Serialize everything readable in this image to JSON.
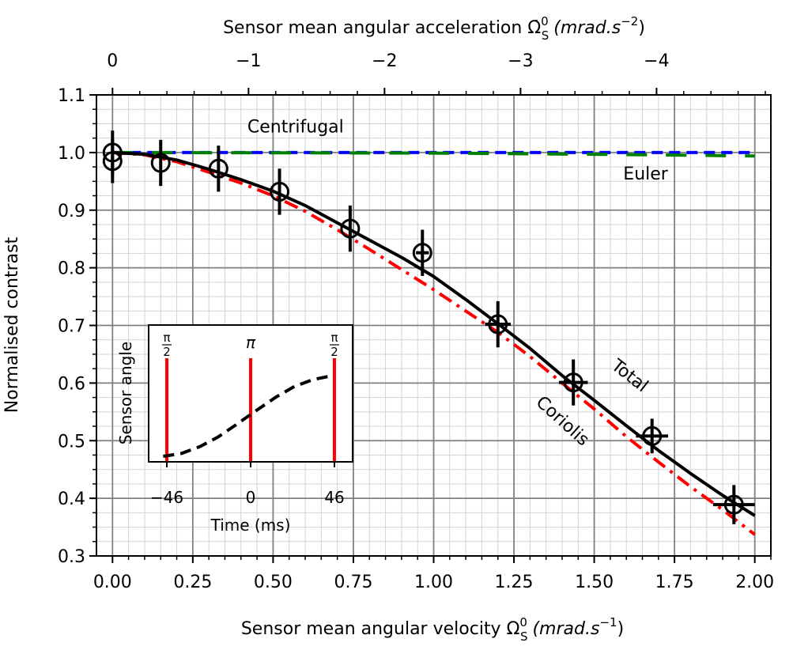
{
  "chart_data": {
    "type": "line",
    "top_axis": {
      "label": "Sensor mean angular acceleration",
      "label_symbol": "Ω̇",
      "label_super": "0",
      "label_sub": "S",
      "label_units": "(mrad.s",
      "label_units_exp": "−2",
      "label_units_close": ")",
      "ticks": [
        {
          "x": 0.0,
          "label": "0"
        },
        {
          "x": 0.4235,
          "label": "−1"
        },
        {
          "x": 0.847,
          "label": "−2"
        },
        {
          "x": 1.2705,
          "label": "−3"
        },
        {
          "x": 1.694,
          "label": "−4"
        }
      ]
    },
    "xlabel": "Sensor mean angular velocity",
    "xlabel_symbol": "Ω",
    "xlabel_super": "0",
    "xlabel_sub": "S",
    "xlabel_units": "(mrad.s",
    "xlabel_units_exp": "−1",
    "xlabel_units_close": ")",
    "ylabel": "Normalised contrast",
    "xlim": [
      -0.05,
      2.05
    ],
    "ylim": [
      0.3,
      1.1
    ],
    "xticks": [
      0.0,
      0.25,
      0.5,
      0.75,
      1.0,
      1.25,
      1.5,
      1.75,
      2.0
    ],
    "xtick_labels": [
      "0.00",
      "0.25",
      "0.50",
      "0.75",
      "1.00",
      "1.25",
      "1.50",
      "1.75",
      "2.00"
    ],
    "yticks": [
      0.3,
      0.4,
      0.5,
      0.6,
      0.7,
      0.8,
      0.9,
      1.0,
      1.1
    ],
    "ytick_labels": [
      "0.3",
      "0.4",
      "0.5",
      "0.6",
      "0.7",
      "0.8",
      "0.9",
      "1.0",
      "1.1"
    ],
    "grid": true,
    "series": [
      {
        "name": "Total",
        "color": "#000000",
        "style": "solid",
        "x": [
          0.0,
          0.1,
          0.2,
          0.3,
          0.4,
          0.5,
          0.6,
          0.7,
          0.8,
          0.9,
          1.0,
          1.1,
          1.2,
          1.3,
          1.4,
          1.5,
          1.6,
          1.7,
          1.8,
          1.9,
          2.0
        ],
        "y": [
          1.0,
          0.997,
          0.987,
          0.971,
          0.953,
          0.933,
          0.908,
          0.878,
          0.848,
          0.818,
          0.785,
          0.745,
          0.703,
          0.66,
          0.613,
          0.57,
          0.526,
          0.483,
          0.443,
          0.405,
          0.37
        ]
      },
      {
        "name": "Coriolis",
        "color": "#ff0000",
        "style": "dashdot",
        "x": [
          0.0,
          0.1,
          0.2,
          0.3,
          0.4,
          0.5,
          0.6,
          0.7,
          0.8,
          0.9,
          1.0,
          1.1,
          1.2,
          1.3,
          1.4,
          1.5,
          1.6,
          1.7,
          1.8,
          1.9,
          2.0
        ],
        "y": [
          1.0,
          0.996,
          0.984,
          0.966,
          0.947,
          0.925,
          0.898,
          0.866,
          0.832,
          0.797,
          0.762,
          0.725,
          0.688,
          0.646,
          0.6,
          0.555,
          0.507,
          0.463,
          0.42,
          0.38,
          0.337
        ]
      },
      {
        "name": "Centrifugal",
        "color": "#0000ff",
        "style": "dashed",
        "x": [
          0.0,
          2.0
        ],
        "y": [
          1.0,
          1.0
        ]
      },
      {
        "name": "Euler",
        "color": "#008000",
        "style": "longdash",
        "x": [
          0.0,
          0.5,
          1.0,
          1.5,
          2.0
        ],
        "y": [
          1.0,
          0.9995,
          0.999,
          0.997,
          0.994
        ]
      }
    ],
    "measurements": {
      "x": [
        0.0,
        0.0,
        0.15,
        0.33,
        0.52,
        0.74,
        0.965,
        1.2,
        1.435,
        1.68,
        1.935
      ],
      "y": [
        0.985,
        1.0,
        0.982,
        0.972,
        0.932,
        0.868,
        0.826,
        0.702,
        0.601,
        0.508,
        0.389
      ],
      "yerr": [
        0.038,
        0.038,
        0.04,
        0.04,
        0.04,
        0.04,
        0.04,
        0.04,
        0.04,
        0.03,
        0.034
      ],
      "xerr": [
        0.0,
        0.0,
        0.0,
        0.0,
        0.0,
        0.0,
        0.02,
        0.04,
        0.045,
        0.05,
        0.065
      ]
    },
    "annotations": [
      {
        "text": "Centrifugal",
        "color": "#0000ff",
        "x": 0.57,
        "y": 1.035,
        "rotate": 0
      },
      {
        "text": "Euler",
        "color": "#008000",
        "x": 1.66,
        "y": 0.953,
        "rotate": 0
      },
      {
        "text": "Total",
        "color": "#000000",
        "x": 1.6,
        "y": 0.605,
        "rotate": 38
      },
      {
        "text": "Coriolis",
        "color": "#ff0000",
        "x": 1.39,
        "y": 0.527,
        "rotate": 42
      }
    ],
    "inset": {
      "xlabel": "Time (ms)",
      "ylabel": "Sensor angle",
      "xlim": [
        -56,
        56
      ],
      "xticks": [
        -46,
        0,
        46
      ],
      "xtick_labels": [
        "−46",
        "0",
        "46"
      ],
      "pulses": [
        {
          "t": -46,
          "label_type": "fraction",
          "num": "π",
          "den": "2"
        },
        {
          "t": 0,
          "label_type": "text",
          "label": "π"
        },
        {
          "t": 46,
          "label_type": "fraction",
          "num": "π",
          "den": "2"
        }
      ],
      "curve_t": [
        -46,
        -36,
        -26,
        -16,
        -6,
        0,
        6,
        16,
        26,
        36,
        46
      ],
      "curve_y": [
        0.0,
        0.03,
        0.1,
        0.2,
        0.33,
        0.41,
        0.49,
        0.62,
        0.73,
        0.8,
        0.84
      ]
    }
  }
}
